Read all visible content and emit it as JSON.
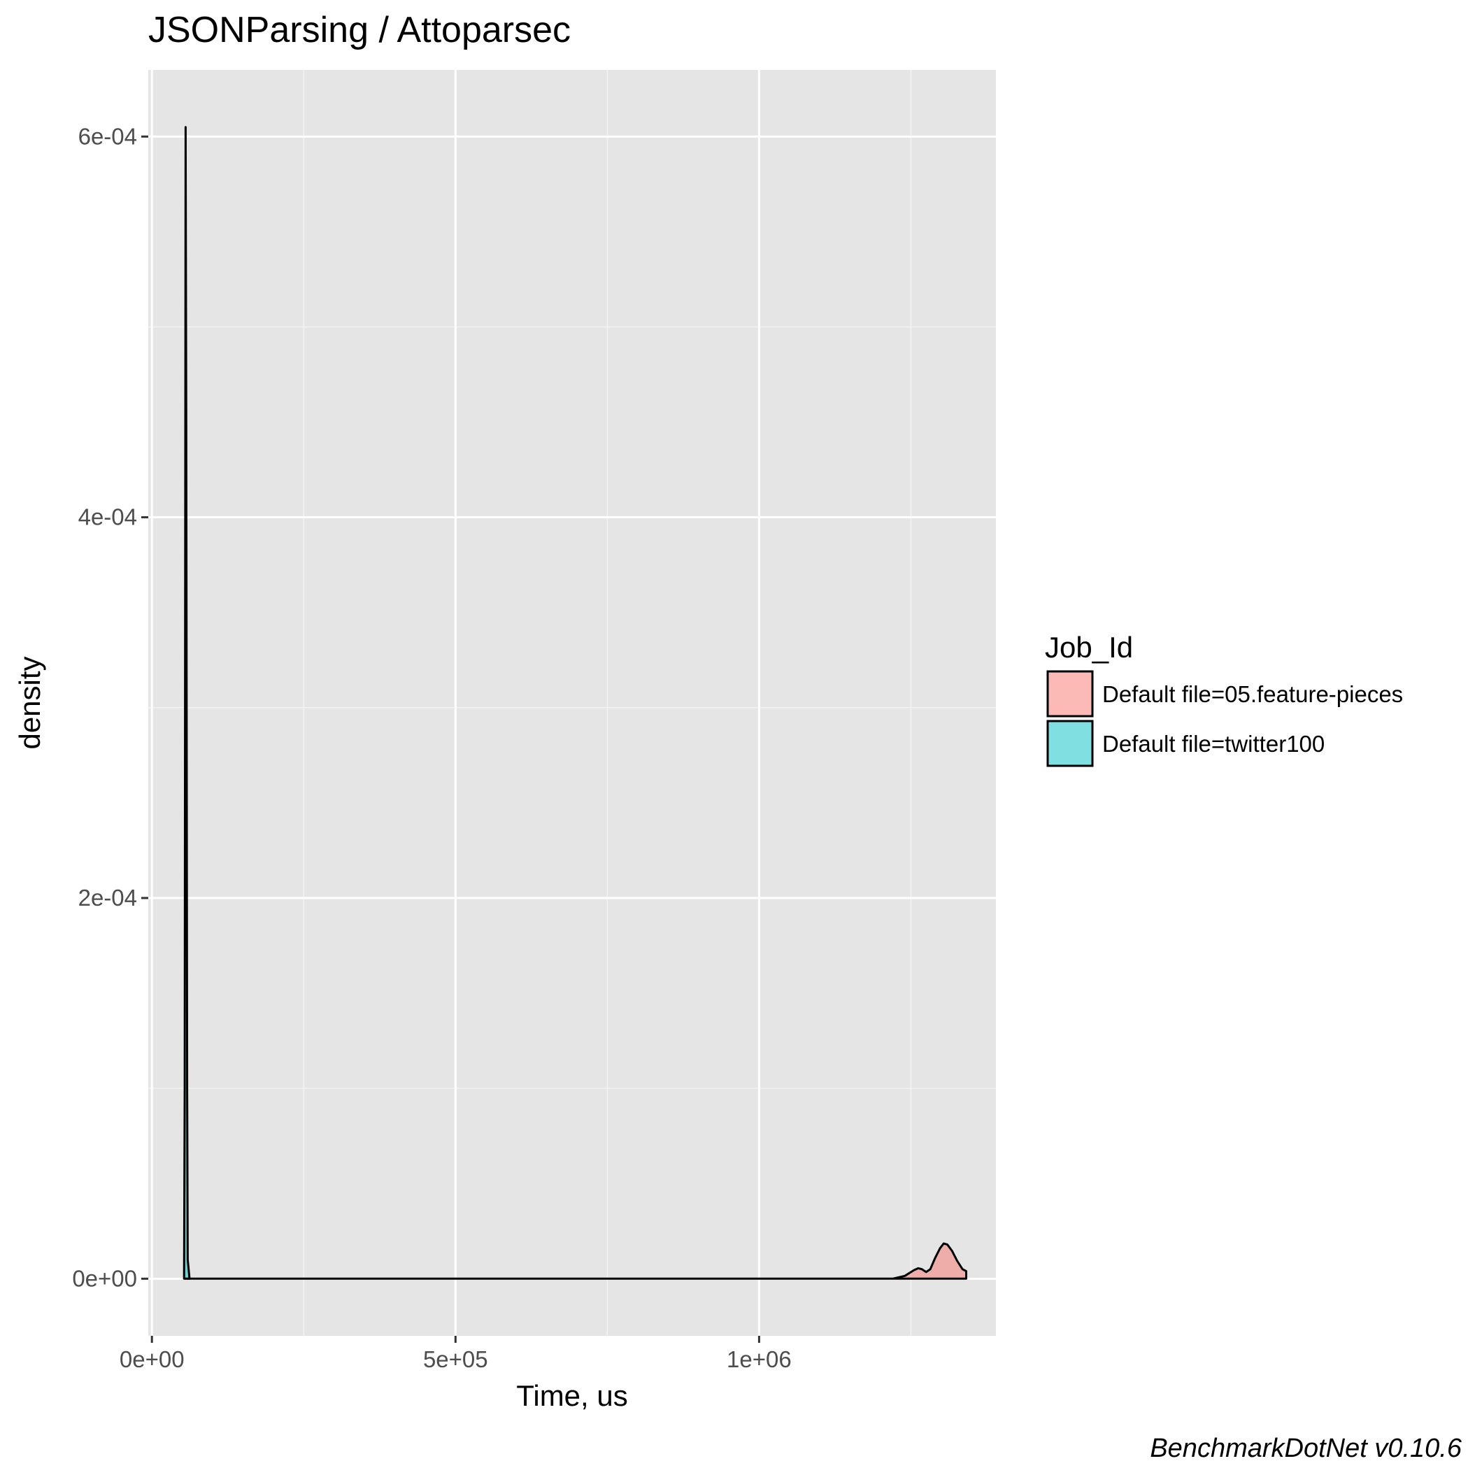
{
  "chart_data": {
    "type": "area",
    "title": "JSONParsing / Attoparsec",
    "xlabel": "Time, us",
    "ylabel": "density",
    "xlim": [
      -6000,
      1390000
    ],
    "ylim": [
      -3e-05,
      0.000635
    ],
    "x_ticks": [
      {
        "value": 0,
        "label": "0e+00"
      },
      {
        "value": 500000,
        "label": "5e+05"
      },
      {
        "value": 1000000,
        "label": "1e+06"
      }
    ],
    "y_ticks": [
      {
        "value": 0,
        "label": "0e+00"
      },
      {
        "value": 0.0002,
        "label": "2e-04"
      },
      {
        "value": 0.0004,
        "label": "4e-04"
      },
      {
        "value": 0.0006,
        "label": "6e-04"
      }
    ],
    "x_minor": [
      250000,
      750000,
      1250000
    ],
    "y_minor": [
      0.0001,
      0.0003,
      0.0005
    ],
    "grid": true,
    "legend": {
      "title": "Job_Id",
      "position": "right"
    },
    "series": [
      {
        "name": "Default file=05.feature-pieces",
        "color": "#F8766D",
        "points": [
          [
            55000,
            0
          ],
          [
            1220000,
            0
          ],
          [
            1240000,
            1.5e-06
          ],
          [
            1255000,
            4.5e-06
          ],
          [
            1262000,
            5.5e-06
          ],
          [
            1268000,
            5e-06
          ],
          [
            1275000,
            3.5e-06
          ],
          [
            1282000,
            5e-06
          ],
          [
            1290000,
            1.1e-05
          ],
          [
            1298000,
            1.6e-05
          ],
          [
            1304000,
            1.85e-05
          ],
          [
            1310000,
            1.8e-05
          ],
          [
            1318000,
            1.45e-05
          ],
          [
            1326000,
            9.5e-06
          ],
          [
            1335000,
            5e-06
          ],
          [
            1341000,
            4e-06
          ],
          [
            1341000,
            0
          ]
        ]
      },
      {
        "name": "Default file=twitter100",
        "color": "#00BFC4",
        "points": [
          [
            53000,
            0
          ],
          [
            54000,
            0.0001
          ],
          [
            55000,
            0.00045
          ],
          [
            55500,
            0.000605
          ],
          [
            56500,
            0.00045
          ],
          [
            58000,
            0.0001
          ],
          [
            59000,
            1e-05
          ],
          [
            62000,
            0
          ]
        ]
      }
    ],
    "caption": "BenchmarkDotNet v0.10.6"
  }
}
